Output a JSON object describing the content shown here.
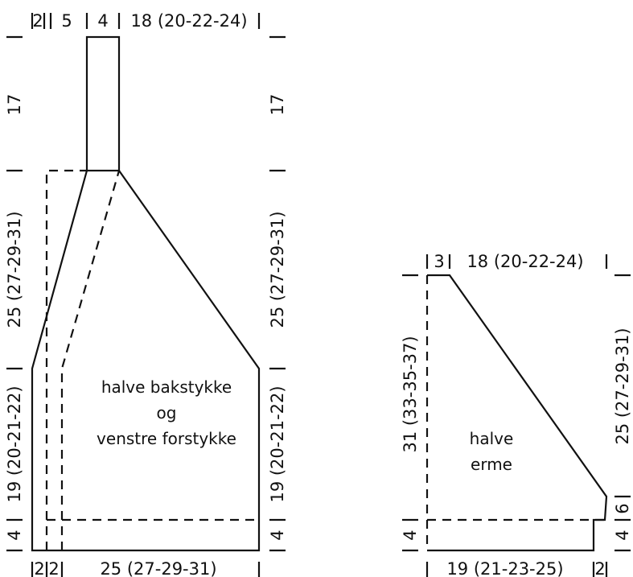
{
  "body_piece": {
    "label_lines": [
      "halve bakstykke",
      "og",
      "venstre forstykke"
    ],
    "top_dims": {
      "left_edge": "2",
      "collar_gap": "5",
      "neckband": "4",
      "shoulder": "18 (20-22-24)"
    },
    "bottom_dims": {
      "edge_a": "2",
      "edge_b": "2",
      "width": "25 (27-29-31)"
    },
    "left_dims": {
      "collar_height": "17",
      "yoke": "25 (27-29-31)",
      "body": "19 (20-21-22)",
      "rib": "4"
    },
    "right_dims": {
      "collar_height": "17",
      "yoke": "25 (27-29-31)",
      "body": "19 (20-21-22)",
      "rib": "4"
    }
  },
  "sleeve_piece": {
    "label_lines": [
      "halve",
      "erme"
    ],
    "top_dims": {
      "edge": "3",
      "top": "18 (20-22-24)"
    },
    "bottom_dims": {
      "width": "19 (21-23-25)",
      "edge": "2"
    },
    "left_dims": {
      "length": "31 (33-35-37)",
      "rib": "4"
    },
    "right_dims": {
      "raglan": "25 (27-29-31)",
      "straight": "6",
      "rib": "4"
    }
  }
}
